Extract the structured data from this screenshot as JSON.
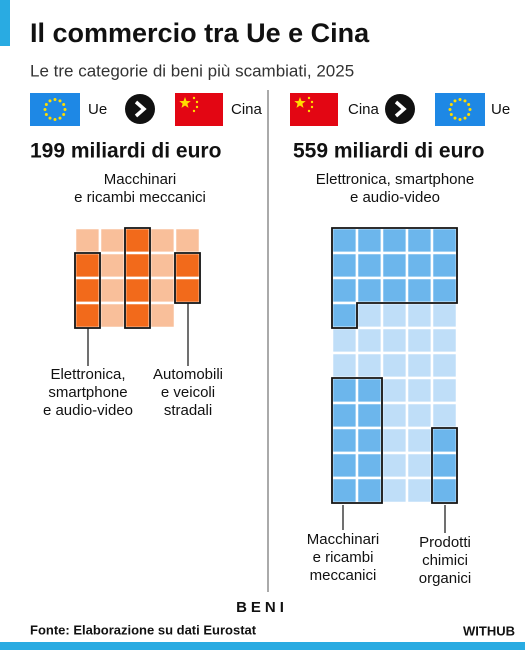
{
  "title": "Il commercio tra Ue e Cina",
  "subtitle": "Le tre categorie di beni più scambiati, 2025",
  "axis_label": "BENI",
  "footer": "Fonte: Elaborazione su dati Eurostat",
  "brand": "WITHUB",
  "chart_data": [
    {
      "type": "waffle",
      "from": "Ue",
      "to": "Cina",
      "title": "199 miliardi di euro",
      "squares": 19,
      "color": "#f26a1b",
      "light_color": "#f9bf9a",
      "series": [
        {
          "label": [
            "Macchinari",
            "e ricambi meccanici"
          ],
          "squares": 4
        },
        {
          "label": [
            "Elettronica,",
            "smartphone",
            "e audio-video"
          ],
          "squares": 3
        },
        {
          "label": [
            "Automobili",
            "e veicoli",
            "stradali"
          ],
          "squares": 2
        }
      ]
    },
    {
      "type": "waffle",
      "from": "Cina",
      "to": "Ue",
      "title": "559 miliardi di euro",
      "squares": 55,
      "color": "#6cb6ec",
      "light_color": "#bfdef8",
      "series": [
        {
          "label": [
            "Elettronica, smartphone",
            "e audio-video"
          ],
          "squares": 16
        },
        {
          "label": [
            "Macchinari",
            "e ricambi",
            "meccanici"
          ],
          "squares": 10
        },
        {
          "label": [
            "Prodotti",
            "chimici",
            "organici"
          ],
          "squares": 3
        }
      ]
    }
  ]
}
